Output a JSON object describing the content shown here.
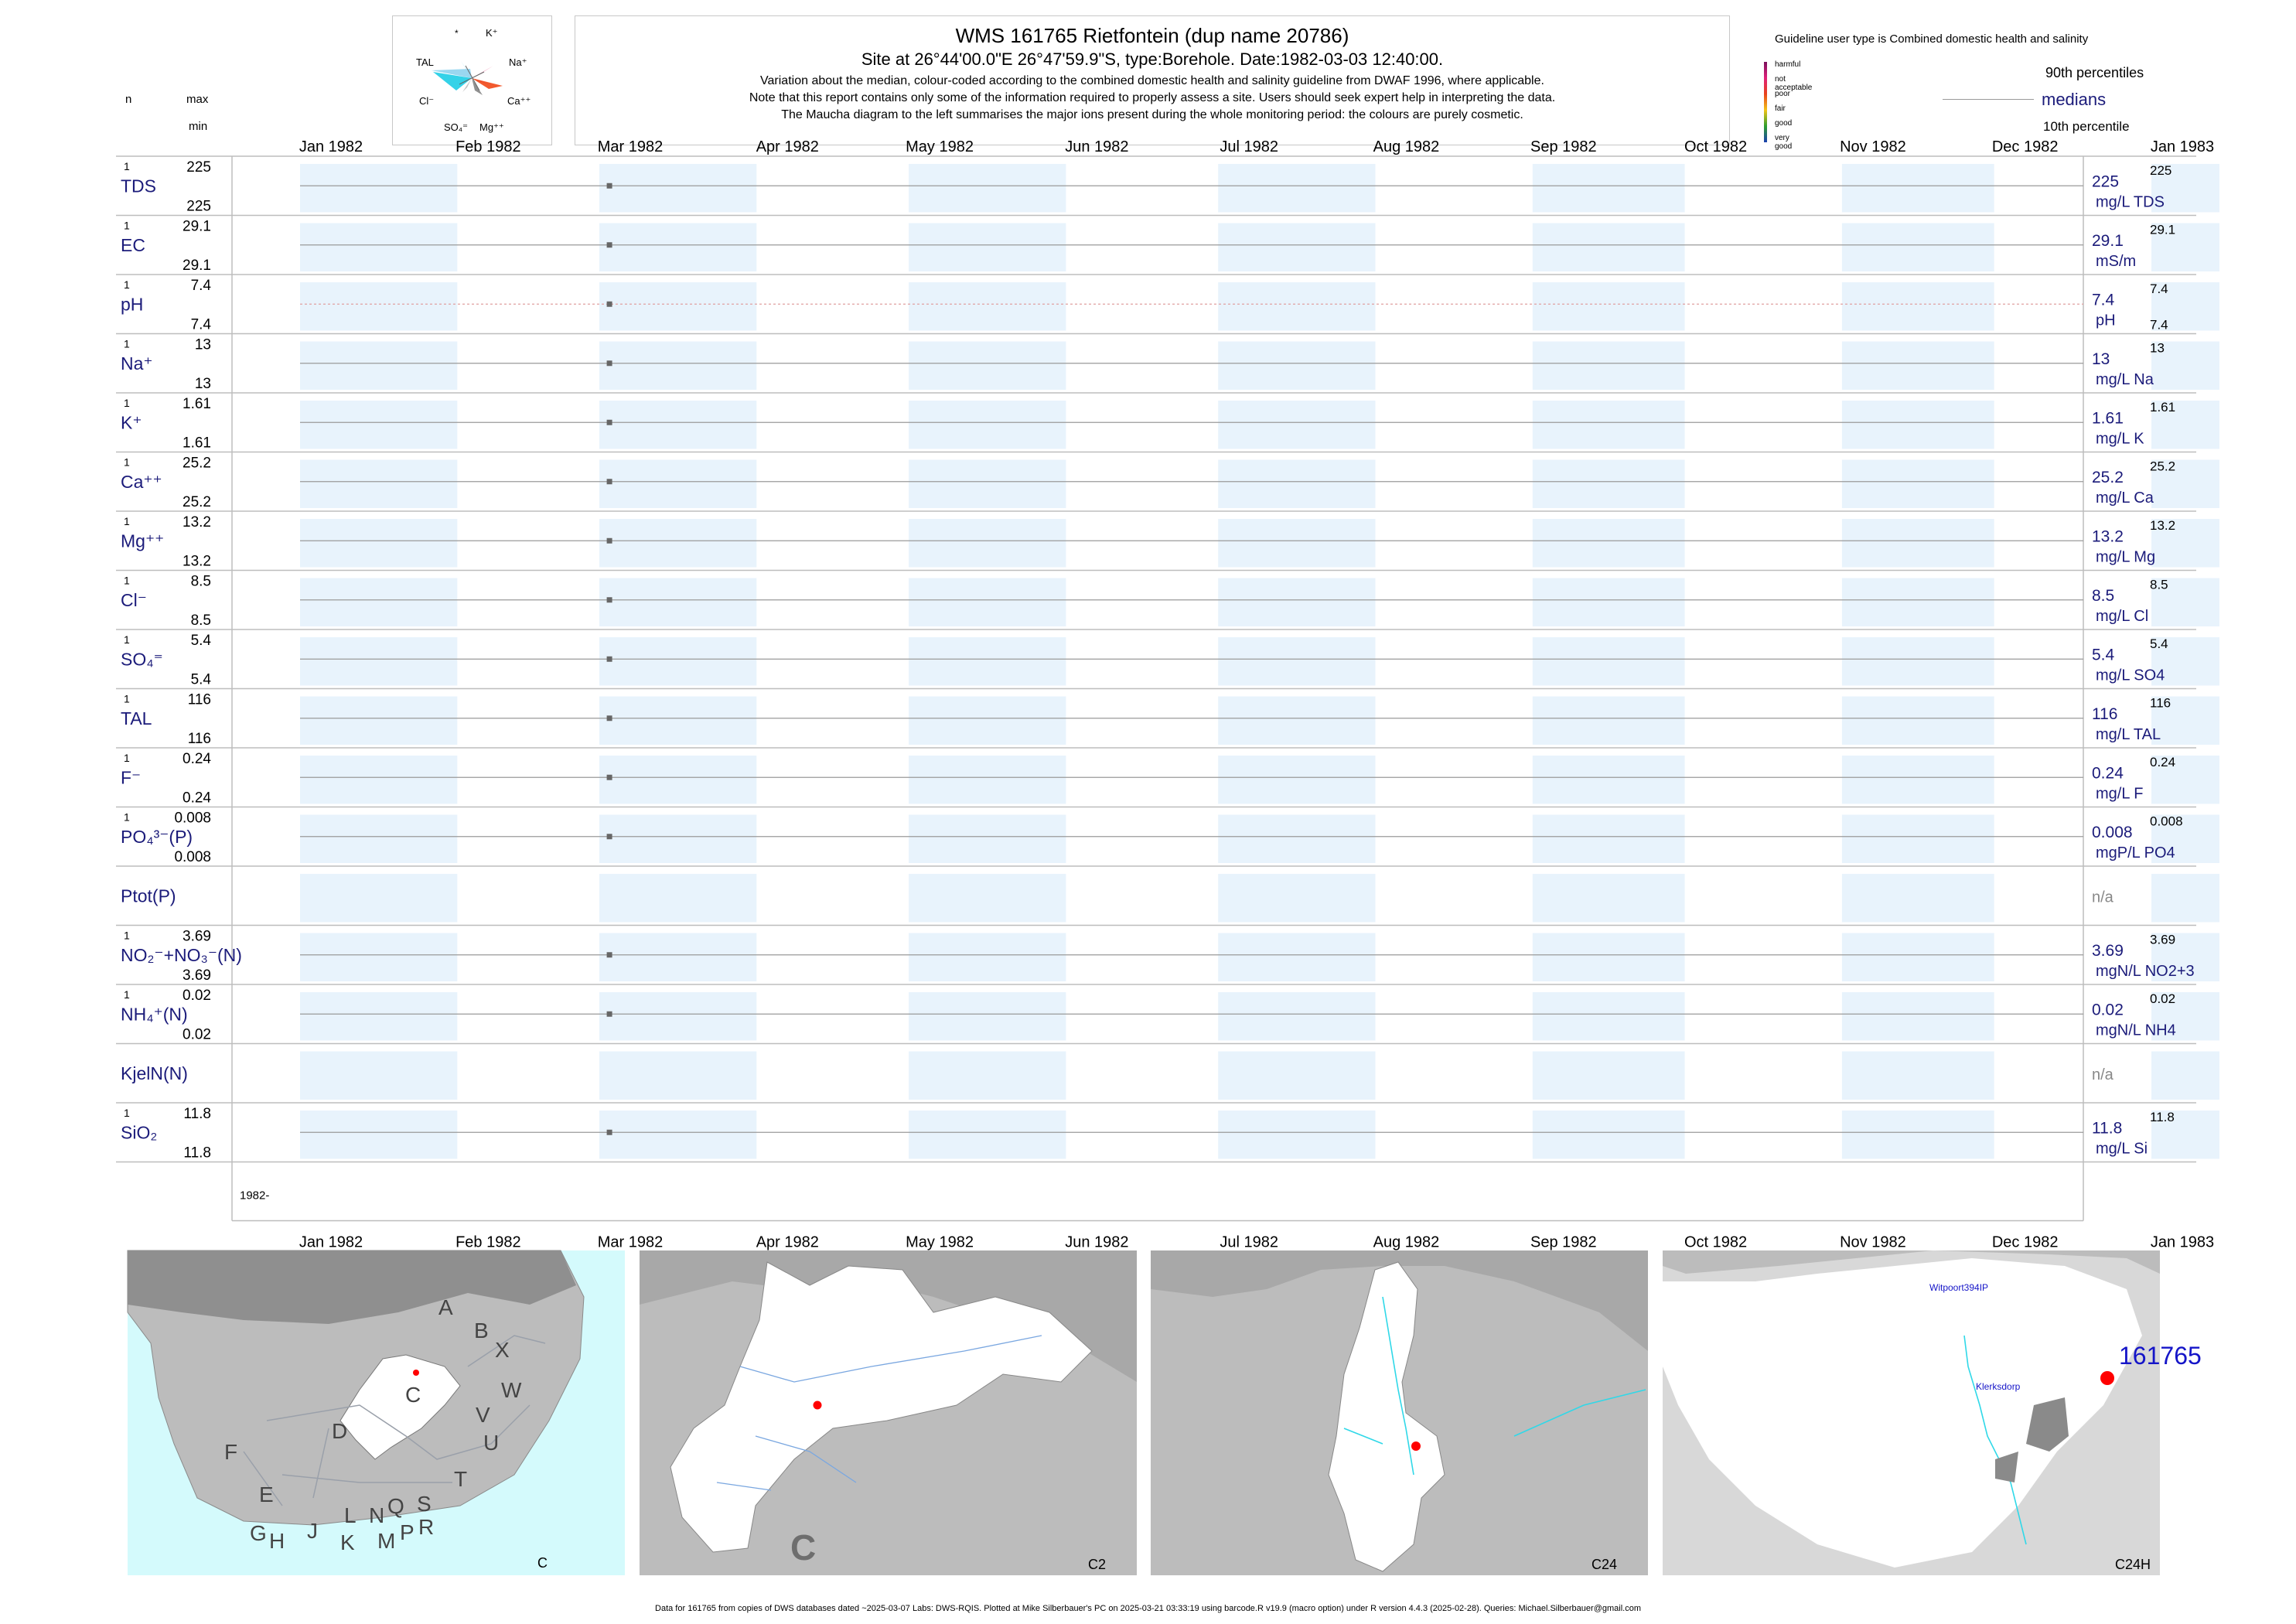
{
  "header": {
    "col_n": "n",
    "col_max": "max",
    "col_min": "min",
    "title": "WMS 161765  Rietfontein (dup name 20786)",
    "site": "Site at 26°44'00.0\"E 26°47'59.9\"S, type:Borehole. Date:1982-03-03 12:40:00.",
    "note1": "Variation about the median,  colour-coded according to the combined domestic health and salinity guideline from DWAF 1996, where applicable.",
    "note2": "Note that this report contains only some of the information required to properly assess a site. Users should seek expert help in interpreting the data.",
    "note3": "The Maucha diagram to the left summarises the major ions present during the whole monitoring period: the colours are purely cosmetic."
  },
  "maucha": {
    "labels": [
      "*",
      "K⁺",
      "TAL",
      "Na⁺",
      "Cl⁻",
      "Ca⁺⁺",
      "SO₄⁼",
      "Mg⁺⁺"
    ]
  },
  "legend": {
    "guideline_title": "Guideline user type is Combined domestic health and salinity",
    "levels": [
      {
        "label": "harmful",
        "color": "#7a0f5c"
      },
      {
        "label": "not acceptable",
        "color": "#e0217a"
      },
      {
        "label": "poor",
        "color": "#e8431b"
      },
      {
        "label": "fair",
        "color": "#f2c418"
      },
      {
        "label": "good",
        "color": "#2e9e2e"
      },
      {
        "label": "very good",
        "color": "#1a3fb0"
      }
    ],
    "p90": "90th percentiles",
    "medians": "medians",
    "p10": "10th percentile"
  },
  "chart_data": {
    "type": "scatter",
    "x_axis": {
      "start": "1982-01-01",
      "end": "1983-01-01",
      "tick_labels": [
        "Jan 1982",
        "Feb 1982",
        "Mar 1982",
        "Apr 1982",
        "May 1982",
        "Jun 1982",
        "Jul 1982",
        "Aug 1982",
        "Sep 1982",
        "Oct 1982",
        "Nov 1982",
        "Dec 1982",
        "Jan 1983"
      ],
      "year_label": "1982-"
    },
    "sample_date": "1982-03-03",
    "shading": "alternate months light blue",
    "series": [
      {
        "name": "TDS",
        "n": "1",
        "max": "225",
        "min": "225",
        "median": "225",
        "p90": "225",
        "unit": "mg/L TDS"
      },
      {
        "name": "EC",
        "n": "1",
        "max": "29.1",
        "min": "29.1",
        "median": "29.1",
        "p90": "29.1",
        "unit": "mS/m"
      },
      {
        "name": "pH",
        "n": "1",
        "max": "7.4",
        "min": "7.4",
        "median": "7.4",
        "p90": "7.4",
        "p10": "7.4",
        "unit": "pH"
      },
      {
        "name": "Na⁺",
        "n": "1",
        "max": "13",
        "min": "13",
        "median": "13",
        "p90": "13",
        "unit": "mg/L Na"
      },
      {
        "name": "K⁺",
        "n": "1",
        "max": "1.61",
        "min": "1.61",
        "median": "1.61",
        "p90": "1.61",
        "unit": "mg/L K"
      },
      {
        "name": "Ca⁺⁺",
        "n": "1",
        "max": "25.2",
        "min": "25.2",
        "median": "25.2",
        "p90": "25.2",
        "unit": "mg/L Ca"
      },
      {
        "name": "Mg⁺⁺",
        "n": "1",
        "max": "13.2",
        "min": "13.2",
        "median": "13.2",
        "p90": "13.2",
        "unit": "mg/L Mg"
      },
      {
        "name": "Cl⁻",
        "n": "1",
        "max": "8.5",
        "min": "8.5",
        "median": "8.5",
        "p90": "8.5",
        "unit": "mg/L Cl"
      },
      {
        "name": "SO₄⁼",
        "n": "1",
        "max": "5.4",
        "min": "5.4",
        "median": "5.4",
        "p90": "5.4",
        "unit": "mg/L SO4"
      },
      {
        "name": "TAL",
        "n": "1",
        "max": "116",
        "min": "116",
        "median": "116",
        "p90": "116",
        "unit": "mg/L TAL"
      },
      {
        "name": "F⁻",
        "n": "1",
        "max": "0.24",
        "min": "0.24",
        "median": "0.24",
        "p90": "0.24",
        "unit": "mg/L F"
      },
      {
        "name": "PO₄³⁻(P)",
        "n": "1",
        "max": "0.008",
        "min": "0.008",
        "median": "0.008",
        "p90": "0.008",
        "unit": "mgP/L PO4"
      },
      {
        "name": "Ptot(P)",
        "n": "",
        "max": "",
        "min": "",
        "median": "n/a",
        "p90": "",
        "unit": ""
      },
      {
        "name": "NO₂⁻+NO₃⁻(N)",
        "n": "1",
        "max": "3.69",
        "min": "3.69",
        "median": "3.69",
        "p90": "3.69",
        "unit": "mgN/L NO2+3"
      },
      {
        "name": "NH₄⁺(N)",
        "n": "1",
        "max": "0.02",
        "min": "0.02",
        "median": "0.02",
        "p90": "0.02",
        "unit": "mgN/L NH4"
      },
      {
        "name": "KjelN(N)",
        "n": "",
        "max": "",
        "min": "",
        "median": "n/a",
        "p90": "",
        "unit": ""
      },
      {
        "name": "SiO₂",
        "n": "1",
        "max": "11.8",
        "min": "11.8",
        "median": "11.8",
        "p90": "11.8",
        "unit": "mg/L Si"
      }
    ]
  },
  "maps": [
    {
      "corner": "C",
      "letters": [
        "A",
        "B",
        "X",
        "W",
        "V",
        "U",
        "T",
        "C",
        "D",
        "F",
        "E",
        "G",
        "H",
        "J",
        "K",
        "L",
        "M",
        "N",
        "P",
        "Q",
        "R",
        "S"
      ]
    },
    {
      "corner": "C2",
      "big_letter": "C"
    },
    {
      "corner": "C24"
    },
    {
      "corner": "C24H",
      "places": [
        "Witpoort394IP",
        "Klerksdorp"
      ],
      "site_label": "161765"
    }
  ],
  "footer": "Data for 161765 from copies of DWS databases dated ~2025-03-07 Labs: DWS-RQIS. Plotted at Mike Silberbauer's PC on 2025-03-21 03:33:19 using barcode.R v19.9 (macro option) under R version 4.4.3 (2025-02-28). Queries: Michael.Silberbauer@gmail.com",
  "colors": {
    "navy": "#1b1b7a",
    "shade": "#e8f3fc",
    "site": "#ff0000",
    "map_grey": "#bcbcbc",
    "sea": "#d4fafc"
  }
}
